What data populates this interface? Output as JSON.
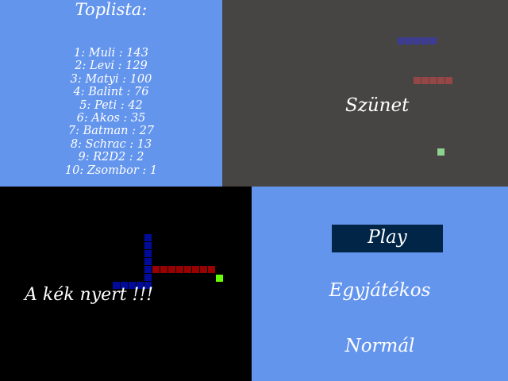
{
  "toplist": {
    "title": "Toplista:",
    "entries": [
      "1: Muli  :  143",
      "2: Levi  :  129",
      "3: Matyi  :  100",
      "4: Balint  :  76",
      "5: Peti  :  42",
      "6: Akos  :  35",
      "7: Batman  :  27",
      "8: Schrac  :  13",
      "9: R2D2  :  2",
      "10: Zsombor  :  1"
    ]
  },
  "pause": {
    "label": "Szünet"
  },
  "gameover": {
    "message": "A kék nyert !!!"
  },
  "menu": {
    "play": "Play",
    "mode": "Egyjátékos",
    "difficulty": "Normál"
  },
  "colors": {
    "menu_bg": "#6495ed",
    "pause_bg": "#474543",
    "play_button": "#002546",
    "blue_snake": "#000c99",
    "red_snake": "#990000",
    "food": "#66ff00"
  }
}
